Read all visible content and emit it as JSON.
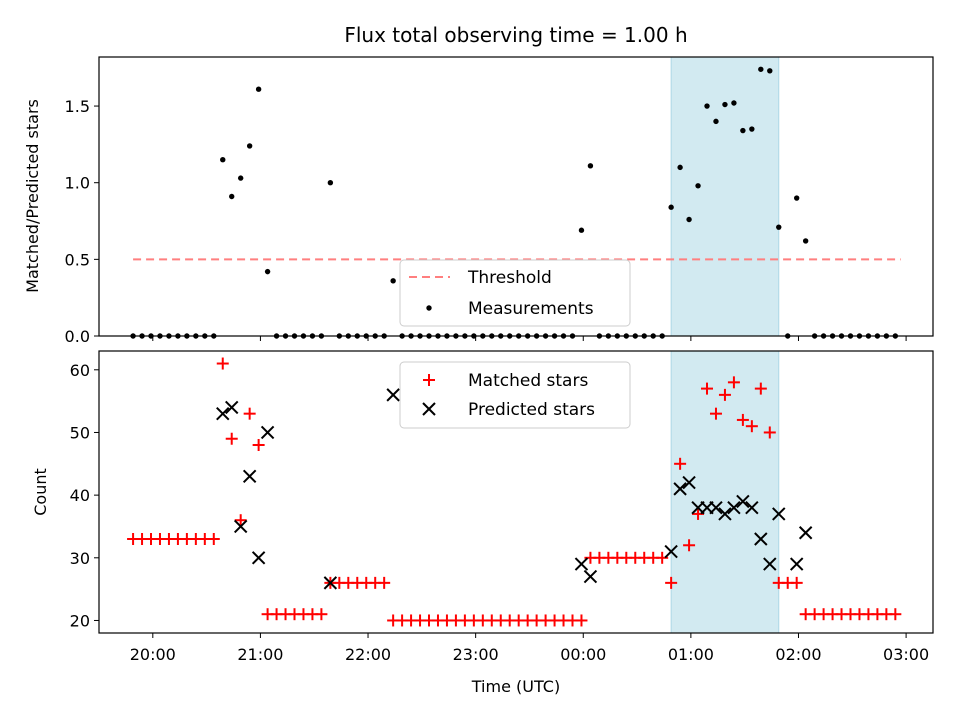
{
  "chart_data": [
    {
      "type": "scatter",
      "title": "Flux total observing time = 1.00 h",
      "ylabel": "Matched/Predicted stars",
      "xlim": [
        "19:30",
        "03:15"
      ],
      "ylim": [
        0,
        1.82
      ],
      "yticks": [
        0.0,
        0.5,
        1.0,
        1.5
      ],
      "ytick_labels": [
        "0.0",
        "0.5",
        "1.0",
        "1.5"
      ],
      "threshold": {
        "name": "Threshold",
        "value": 0.5,
        "x_start": "19:49",
        "x_end": "02:57",
        "color": "#ff7f7f"
      },
      "highlight_span": {
        "start": "00:49",
        "end": "01:49",
        "color": "#add8e6"
      },
      "legend_position": "lower-center",
      "series": [
        {
          "name": "Measurements",
          "color": "#000000",
          "points": [
            [
              "19:49",
              0
            ],
            [
              "19:54",
              0
            ],
            [
              "19:59",
              0
            ],
            [
              "20:04",
              0
            ],
            [
              "20:09",
              0
            ],
            [
              "20:14",
              0
            ],
            [
              "20:19",
              0
            ],
            [
              "20:24",
              0
            ],
            [
              "20:29",
              0
            ],
            [
              "20:34",
              0
            ],
            [
              "20:39",
              1.15
            ],
            [
              "20:44",
              0.91
            ],
            [
              "20:49",
              1.03
            ],
            [
              "20:54",
              1.24
            ],
            [
              "20:59",
              1.61
            ],
            [
              "21:04",
              0.42
            ],
            [
              "21:09",
              0
            ],
            [
              "21:14",
              0
            ],
            [
              "21:19",
              0
            ],
            [
              "21:24",
              0
            ],
            [
              "21:29",
              0
            ],
            [
              "21:34",
              0
            ],
            [
              "21:39",
              1.0
            ],
            [
              "21:44",
              0
            ],
            [
              "21:49",
              0
            ],
            [
              "21:54",
              0
            ],
            [
              "21:59",
              0
            ],
            [
              "22:04",
              0
            ],
            [
              "22:09",
              0
            ],
            [
              "22:14",
              0.36
            ],
            [
              "22:19",
              0
            ],
            [
              "22:24",
              0
            ],
            [
              "22:29",
              0
            ],
            [
              "22:34",
              0
            ],
            [
              "22:39",
              0
            ],
            [
              "22:44",
              0
            ],
            [
              "22:49",
              0
            ],
            [
              "22:54",
              0
            ],
            [
              "22:59",
              0
            ],
            [
              "23:04",
              0
            ],
            [
              "23:09",
              0
            ],
            [
              "23:14",
              0
            ],
            [
              "23:19",
              0
            ],
            [
              "23:24",
              0
            ],
            [
              "23:29",
              0
            ],
            [
              "23:34",
              0
            ],
            [
              "23:39",
              0
            ],
            [
              "23:44",
              0
            ],
            [
              "23:49",
              0
            ],
            [
              "23:54",
              0
            ],
            [
              "23:59",
              0.69
            ],
            [
              "00:04",
              1.11
            ],
            [
              "00:09",
              0
            ],
            [
              "00:14",
              0
            ],
            [
              "00:19",
              0
            ],
            [
              "00:24",
              0
            ],
            [
              "00:29",
              0
            ],
            [
              "00:34",
              0
            ],
            [
              "00:39",
              0
            ],
            [
              "00:44",
              0
            ],
            [
              "00:49",
              0.84
            ],
            [
              "00:54",
              1.1
            ],
            [
              "00:59",
              0.76
            ],
            [
              "01:04",
              0.98
            ],
            [
              "01:09",
              1.5
            ],
            [
              "01:14",
              1.4
            ],
            [
              "01:19",
              1.51
            ],
            [
              "01:24",
              1.52
            ],
            [
              "01:29",
              1.34
            ],
            [
              "01:34",
              1.35
            ],
            [
              "01:39",
              1.74
            ],
            [
              "01:44",
              1.73
            ],
            [
              "01:49",
              0.71
            ],
            [
              "01:54",
              0
            ],
            [
              "01:59",
              0.9
            ],
            [
              "02:04",
              0.62
            ],
            [
              "02:09",
              0
            ],
            [
              "02:14",
              0
            ],
            [
              "02:19",
              0
            ],
            [
              "02:24",
              0
            ],
            [
              "02:29",
              0
            ],
            [
              "02:34",
              0
            ],
            [
              "02:39",
              0
            ],
            [
              "02:44",
              0
            ],
            [
              "02:49",
              0
            ],
            [
              "02:54",
              0
            ]
          ]
        }
      ]
    },
    {
      "type": "scatter",
      "ylabel": "Count",
      "xlabel": "Time (UTC)",
      "xlim": [
        "19:30",
        "03:15"
      ],
      "xticks": [
        "20:00",
        "21:00",
        "22:00",
        "23:00",
        "00:00",
        "01:00",
        "02:00",
        "03:00"
      ],
      "ylim": [
        18,
        63
      ],
      "yticks": [
        20,
        30,
        40,
        50,
        60
      ],
      "ytick_labels": [
        "20",
        "30",
        "40",
        "50",
        "60"
      ],
      "highlight_span": {
        "start": "00:49",
        "end": "01:49",
        "color": "#add8e6"
      },
      "legend_position": "upper-center",
      "series": [
        {
          "name": "Matched stars",
          "marker": "+",
          "color": "#ff0000",
          "points": [
            [
              "19:49",
              33
            ],
            [
              "19:54",
              33
            ],
            [
              "19:59",
              33
            ],
            [
              "20:04",
              33
            ],
            [
              "20:09",
              33
            ],
            [
              "20:14",
              33
            ],
            [
              "20:19",
              33
            ],
            [
              "20:24",
              33
            ],
            [
              "20:29",
              33
            ],
            [
              "20:34",
              33
            ],
            [
              "20:39",
              61
            ],
            [
              "20:44",
              49
            ],
            [
              "20:49",
              36
            ],
            [
              "20:54",
              53
            ],
            [
              "20:59",
              48
            ],
            [
              "21:04",
              21
            ],
            [
              "21:09",
              21
            ],
            [
              "21:14",
              21
            ],
            [
              "21:19",
              21
            ],
            [
              "21:24",
              21
            ],
            [
              "21:29",
              21
            ],
            [
              "21:34",
              21
            ],
            [
              "21:39",
              26
            ],
            [
              "21:44",
              26
            ],
            [
              "21:49",
              26
            ],
            [
              "21:54",
              26
            ],
            [
              "21:59",
              26
            ],
            [
              "22:04",
              26
            ],
            [
              "22:09",
              26
            ],
            [
              "22:14",
              20
            ],
            [
              "22:19",
              20
            ],
            [
              "22:24",
              20
            ],
            [
              "22:29",
              20
            ],
            [
              "22:34",
              20
            ],
            [
              "22:39",
              20
            ],
            [
              "22:44",
              20
            ],
            [
              "22:49",
              20
            ],
            [
              "22:54",
              20
            ],
            [
              "22:59",
              20
            ],
            [
              "23:04",
              20
            ],
            [
              "23:09",
              20
            ],
            [
              "23:14",
              20
            ],
            [
              "23:19",
              20
            ],
            [
              "23:24",
              20
            ],
            [
              "23:29",
              20
            ],
            [
              "23:34",
              20
            ],
            [
              "23:39",
              20
            ],
            [
              "23:44",
              20
            ],
            [
              "23:49",
              20
            ],
            [
              "23:54",
              20
            ],
            [
              "23:59",
              20
            ],
            [
              "00:04",
              30
            ],
            [
              "00:09",
              30
            ],
            [
              "00:14",
              30
            ],
            [
              "00:19",
              30
            ],
            [
              "00:24",
              30
            ],
            [
              "00:29",
              30
            ],
            [
              "00:34",
              30
            ],
            [
              "00:39",
              30
            ],
            [
              "00:44",
              30
            ],
            [
              "00:49",
              26
            ],
            [
              "00:54",
              45
            ],
            [
              "00:59",
              32
            ],
            [
              "01:04",
              37
            ],
            [
              "01:09",
              57
            ],
            [
              "01:14",
              53
            ],
            [
              "01:19",
              56
            ],
            [
              "01:24",
              58
            ],
            [
              "01:29",
              52
            ],
            [
              "01:34",
              51
            ],
            [
              "01:39",
              57
            ],
            [
              "01:44",
              50
            ],
            [
              "01:49",
              26
            ],
            [
              "01:54",
              26
            ],
            [
              "01:59",
              26
            ],
            [
              "02:04",
              21
            ],
            [
              "02:09",
              21
            ],
            [
              "02:14",
              21
            ],
            [
              "02:19",
              21
            ],
            [
              "02:24",
              21
            ],
            [
              "02:29",
              21
            ],
            [
              "02:34",
              21
            ],
            [
              "02:39",
              21
            ],
            [
              "02:44",
              21
            ],
            [
              "02:49",
              21
            ],
            [
              "02:54",
              21
            ]
          ]
        },
        {
          "name": "Predicted stars",
          "marker": "x",
          "color": "#000000",
          "points": [
            [
              "20:39",
              53
            ],
            [
              "20:44",
              54
            ],
            [
              "20:49",
              35
            ],
            [
              "20:54",
              43
            ],
            [
              "20:59",
              30
            ],
            [
              "21:04",
              50
            ],
            [
              "21:39",
              26
            ],
            [
              "22:14",
              56
            ],
            [
              "23:59",
              29
            ],
            [
              "00:04",
              27
            ],
            [
              "00:49",
              31
            ],
            [
              "00:54",
              41
            ],
            [
              "00:59",
              42
            ],
            [
              "01:04",
              38
            ],
            [
              "01:09",
              38
            ],
            [
              "01:14",
              38
            ],
            [
              "01:19",
              37
            ],
            [
              "01:24",
              38
            ],
            [
              "01:29",
              39
            ],
            [
              "01:34",
              38
            ],
            [
              "01:39",
              33
            ],
            [
              "01:44",
              29
            ],
            [
              "01:49",
              37
            ],
            [
              "01:59",
              29
            ],
            [
              "02:04",
              34
            ]
          ]
        }
      ]
    }
  ]
}
